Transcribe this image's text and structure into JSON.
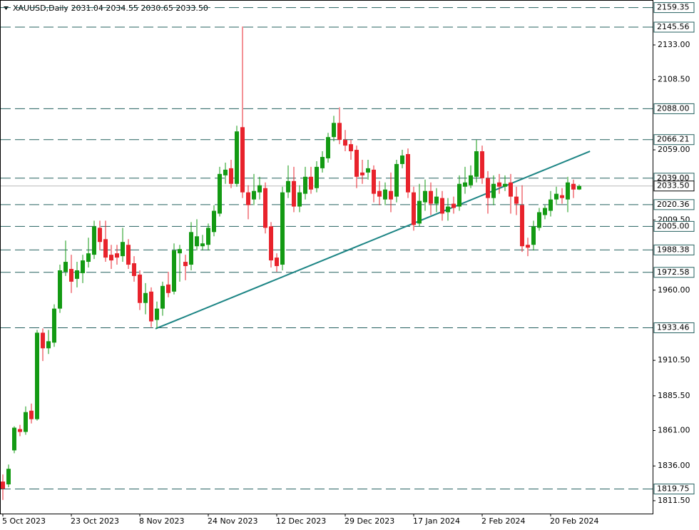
{
  "chart_data": {
    "type": "candlestick",
    "title": "XAUUSD,Daily  2031.04 2034.55 2030.65 2033.50",
    "categories": [
      "5 Oct 2023",
      null,
      null,
      null,
      null,
      null,
      null,
      null,
      null,
      null,
      null,
      null,
      "23 Oct 2023",
      null,
      null,
      null,
      null,
      null,
      null,
      null,
      null,
      null,
      null,
      null,
      "8 Nov 2023",
      null,
      null,
      null,
      null,
      null,
      null,
      null,
      null,
      null,
      null,
      null,
      "24 Nov 2023",
      null,
      null,
      null,
      null,
      null,
      null,
      null,
      null,
      null,
      null,
      null,
      "12 Dec 2023",
      null,
      null,
      null,
      null,
      null,
      null,
      null,
      null,
      null,
      null,
      null,
      "29 Dec 2023",
      null,
      null,
      null,
      null,
      null,
      null,
      null,
      null,
      null,
      null,
      null,
      "17 Jan 2024",
      null,
      null,
      null,
      null,
      null,
      null,
      null,
      null,
      null,
      null,
      null,
      "2 Feb 2024",
      null,
      null,
      null,
      null,
      null,
      null,
      null,
      null,
      null,
      null,
      null,
      "20 Feb 2024",
      null,
      null,
      null,
      null,
      null
    ],
    "open": [
      1825,
      1823,
      1847,
      1862,
      1860,
      1875,
      1869,
      1930,
      1919,
      1923,
      1947,
      1973,
      1975,
      1968,
      1972,
      1980,
      1985,
      2004,
      1996,
      1985,
      1986,
      1984,
      1992,
      1979,
      1971,
      1951,
      1959,
      1939,
      1947,
      1964,
      1959,
      1986,
      1980,
      1978,
      1991,
      1991,
      1992,
      2001,
      2014,
      2041,
      2046,
      2035,
      2075,
      2029,
      2024,
      2029,
      2032,
      2005,
      1983,
      1978,
      2029,
      2037,
      2019,
      2028,
      2040,
      2032,
      2046,
      2053,
      2068,
      2078,
      2066,
      2063,
      2059,
      2043,
      2043,
      2045,
      2030,
      2024,
      2030,
      2026,
      2049,
      2056,
      2029,
      2007,
      2022,
      2030,
      2021,
      2025,
      2015,
      2021,
      2019,
      2033,
      2034,
      2040,
      2058,
      2039,
      2025,
      2036,
      2033,
      2036,
      2026,
      2020,
      1992,
      1992,
      2004,
      2013,
      2016,
      2024,
      2027,
      2024,
      2035,
      2031.04
    ],
    "high": [
      1830,
      1837,
      1864,
      1865,
      1878,
      1880,
      1932,
      1933,
      1932,
      1950,
      1978,
      1995,
      1985,
      1980,
      1985,
      1997,
      2009,
      2009,
      2009,
      1992,
      1992,
      2004,
      1996,
      1984,
      1974,
      1965,
      1962,
      1952,
      1966,
      1973,
      1993,
      1992,
      1985,
      2008,
      2010,
      1999,
      2007,
      2020,
      2047,
      2050,
      2052,
      2076,
      2146,
      2034,
      2042,
      2040,
      2036,
      2008,
      1986,
      2033,
      2048,
      2047,
      2034,
      2047,
      2047,
      2051,
      2058,
      2071,
      2083,
      2089,
      2073,
      2066,
      2062,
      2052,
      2052,
      2048,
      2037,
      2036,
      2043,
      2052,
      2059,
      2060,
      2033,
      2035,
      2038,
      2036,
      2032,
      2030,
      2025,
      2026,
      2041,
      2047,
      2048,
      2066,
      2062,
      2044,
      2041,
      2042,
      2041,
      2042,
      2033,
      2034,
      1997,
      2009,
      2018,
      2020,
      2030,
      2033,
      2032,
      2040,
      2038,
      2034.55
    ],
    "low": [
      1812,
      1821,
      1845,
      1857,
      1858,
      1866,
      1868,
      1910,
      1915,
      1920,
      1944,
      1970,
      1958,
      1962,
      1965,
      1976,
      1982,
      1988,
      1980,
      1975,
      1978,
      1980,
      1975,
      1966,
      1946,
      1943,
      1934,
      1933,
      1942,
      1955,
      1957,
      1966,
      1967,
      1974,
      1988,
      1988,
      1988,
      1998,
      2012,
      2035,
      2032,
      2033,
      2025,
      2010,
      2020,
      2024,
      2000,
      1976,
      1973,
      1974,
      2025,
      2015,
      2015,
      2024,
      2028,
      2029,
      2043,
      2050,
      2065,
      2063,
      2058,
      2052,
      2032,
      2035,
      2038,
      2022,
      2020,
      2020,
      2015,
      2022,
      2046,
      2025,
      2002,
      2005,
      2016,
      2013,
      2015,
      2009,
      2009,
      2014,
      2016,
      2028,
      2032,
      2036,
      2035,
      2014,
      2020,
      2028,
      2030,
      2014,
      2013,
      1987,
      1984,
      1988,
      2002,
      2010,
      2012,
      2020,
      2021,
      2015,
      2025,
      2030.65
    ],
    "close": [
      1820,
      1834,
      1863,
      1860,
      1874,
      1869,
      1930,
      1919,
      1924,
      1947,
      1974,
      1980,
      1966,
      1974,
      1981,
      1986,
      2005,
      1994,
      1983,
      1981,
      1983,
      1994,
      1978,
      1970,
      1951,
      1958,
      1938,
      1947,
      1963,
      1958,
      1988,
      1989,
      1977,
      2001,
      1998,
      1993,
      2004,
      2016,
      2042,
      2045,
      2035,
      2072,
      2029,
      2020,
      2030,
      2034,
      2004,
      1981,
      1977,
      2029,
      2037,
      2019,
      2029,
      2040,
      2031,
      2047,
      2054,
      2068,
      2078,
      2066,
      2062,
      2058,
      2040,
      2041,
      2046,
      2028,
      2026,
      2031,
      2024,
      2049,
      2055,
      2029,
      2006,
      2023,
      2030,
      2021,
      2026,
      2014,
      2019,
      2018,
      2035,
      2036,
      2041,
      2058,
      2039,
      2025,
      2035,
      2033,
      2035,
      2026,
      2021,
      1991,
      1990,
      2005,
      2015,
      2018,
      2024,
      2028,
      2025,
      2036,
      2031,
      2033.5
    ],
    "up_color": "#139a13",
    "down_color": "#e8232c",
    "ylim": [
      1802.4,
      2164.7
    ],
    "yticks": [
      {
        "value": 2133,
        "label": "2133.00"
      },
      {
        "value": 2108.5,
        "label": "2108.50"
      },
      {
        "value": 2059,
        "label": "2059.00"
      },
      {
        "value": 2009.5,
        "label": "2009.50"
      },
      {
        "value": 1960,
        "label": "1960.00"
      },
      {
        "value": 1910.5,
        "label": "1910.50"
      },
      {
        "value": 1885.5,
        "label": "1885.50"
      },
      {
        "value": 1861,
        "label": "1861.00"
      },
      {
        "value": 1836,
        "label": "1836.00"
      },
      {
        "value": 1811.5,
        "label": "1811.50"
      }
    ],
    "levels": [
      {
        "value": 2159.35,
        "label": "2159.35"
      },
      {
        "value": 2145.56,
        "label": "2145.56"
      },
      {
        "value": 2088,
        "label": "2088.00"
      },
      {
        "value": 2066.21,
        "label": "2066.21"
      },
      {
        "value": 2039,
        "label": "2039.00"
      },
      {
        "value": 2020.36,
        "label": "2020.36"
      },
      {
        "value": 2005,
        "label": "2005.00"
      },
      {
        "value": 1988.38,
        "label": "1988.38"
      },
      {
        "value": 1972.58,
        "label": "1972.58"
      },
      {
        "value": 1933.46,
        "label": "1933.46"
      },
      {
        "value": 1819.75,
        "label": "1819.75"
      }
    ],
    "level_color": "#24605f",
    "last_price": {
      "value": 2033.5,
      "label": "2033.50"
    },
    "trendline": {
      "x": [
        26.75,
        102.9
      ],
      "y": [
        1932.8,
        2058.0
      ],
      "color": "#1d8585"
    }
  }
}
